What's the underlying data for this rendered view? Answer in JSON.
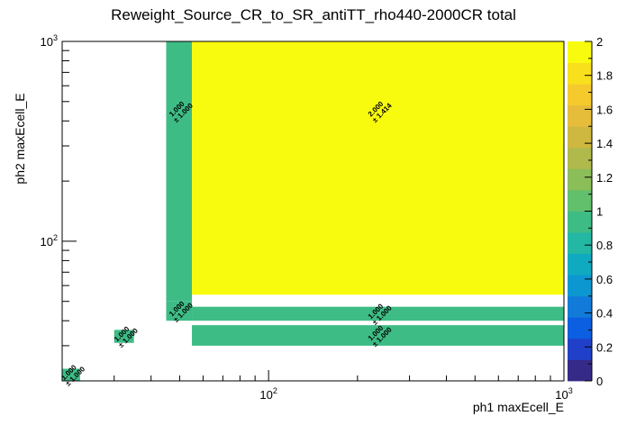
{
  "chart_data": {
    "type": "heatmap",
    "title": "Reweight_Source_CR_to_SR_antiTT_rho440-2000CR total",
    "xlabel": "ph1 maxEcell_E",
    "ylabel": "ph2 maxEcell_E",
    "x_scale": "log",
    "y_scale": "log",
    "xlim": [
      20,
      1000
    ],
    "ylim": [
      20,
      1000
    ],
    "x_major_ticks": [
      {
        "base": "10",
        "exp": "2"
      },
      {
        "base": "10",
        "exp": "3"
      }
    ],
    "y_major_ticks": [
      {
        "base": "10",
        "exp": "2"
      },
      {
        "base": "10",
        "exp": "3"
      }
    ],
    "z_range": [
      0,
      2
    ],
    "colorbar_labels": [
      "0",
      "0.2",
      "0.4",
      "0.6",
      "0.8",
      "1",
      "1.2",
      "1.4",
      "1.6",
      "1.8",
      "2"
    ],
    "palette": [
      "#352a87",
      "#2140c9",
      "#0b5fe0",
      "#127bd9",
      "#0d97d0",
      "#10aac0",
      "#23b7a4",
      "#3ebc86",
      "#62bf6b",
      "#8bbd59",
      "#b0b94b",
      "#cfb840",
      "#e6bd3a",
      "#f5ca2c",
      "#f8e01c",
      "#f9fb0e"
    ],
    "cells": [
      {
        "x": [
          20,
          23
        ],
        "y": [
          20,
          23
        ],
        "value": 1.0,
        "error": 1.0,
        "label": "1.000",
        "err_label": "± 1.000"
      },
      {
        "x": [
          30,
          35
        ],
        "y": [
          31,
          36
        ],
        "value": 1.0,
        "error": 1.0,
        "label": "1.000",
        "err_label": "± 1.000"
      },
      {
        "x": [
          45,
          55
        ],
        "y": [
          50,
          1000
        ],
        "value": 1.0,
        "error": 1.0,
        "label": "1.000",
        "err_label": "± 1.000"
      },
      {
        "x": [
          45,
          55
        ],
        "y": [
          40,
          50
        ],
        "value": 1.0,
        "error": 1.0,
        "label": "1.000",
        "err_label": "± 1.000"
      },
      {
        "x": [
          55,
          1000
        ],
        "y": [
          54,
          1000
        ],
        "value": 2.0,
        "error": 1.414,
        "label": "2.000",
        "err_label": "± 1.414"
      },
      {
        "x": [
          55,
          1000
        ],
        "y": [
          40,
          47
        ],
        "value": 1.0,
        "error": 1.0,
        "label": "1.000",
        "err_label": "± 1.000"
      },
      {
        "x": [
          55,
          1000
        ],
        "y": [
          30,
          38
        ],
        "value": 1.0,
        "error": 1.0,
        "label": "1.000",
        "err_label": "± 1.000"
      }
    ]
  }
}
